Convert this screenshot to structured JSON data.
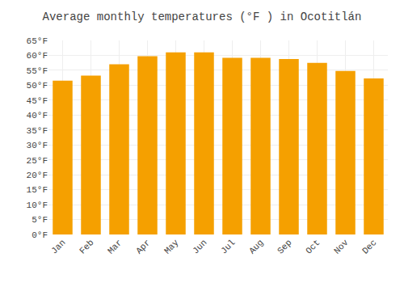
{
  "chart_data": {
    "type": "bar",
    "title": "Average monthly temperatures (°F ) in Ocotitlán",
    "categories": [
      "Jan",
      "Feb",
      "Mar",
      "Apr",
      "May",
      "Jun",
      "Jul",
      "Aug",
      "Sep",
      "Oct",
      "Nov",
      "Dec"
    ],
    "values": [
      51.5,
      53.2,
      57.0,
      59.7,
      61.0,
      61.0,
      59.2,
      59.2,
      58.8,
      57.5,
      54.8,
      52.3
    ],
    "color": "#F5A000",
    "ylim": [
      0,
      65
    ],
    "yticks": [
      {
        "value": 0,
        "label": "0°F"
      },
      {
        "value": 5,
        "label": "5°F"
      },
      {
        "value": 10,
        "label": "10°F"
      },
      {
        "value": 15,
        "label": "15°F"
      },
      {
        "value": 20,
        "label": "20°F"
      },
      {
        "value": 25,
        "label": "25°F"
      },
      {
        "value": 30,
        "label": "30°F"
      },
      {
        "value": 35,
        "label": "35°F"
      },
      {
        "value": 40,
        "label": "40°F"
      },
      {
        "value": 45,
        "label": "45°F"
      },
      {
        "value": 50,
        "label": "50°F"
      },
      {
        "value": 55,
        "label": "55°F"
      },
      {
        "value": 60,
        "label": "60°F"
      },
      {
        "value": 65,
        "label": "65°F"
      }
    ],
    "grid": true
  }
}
